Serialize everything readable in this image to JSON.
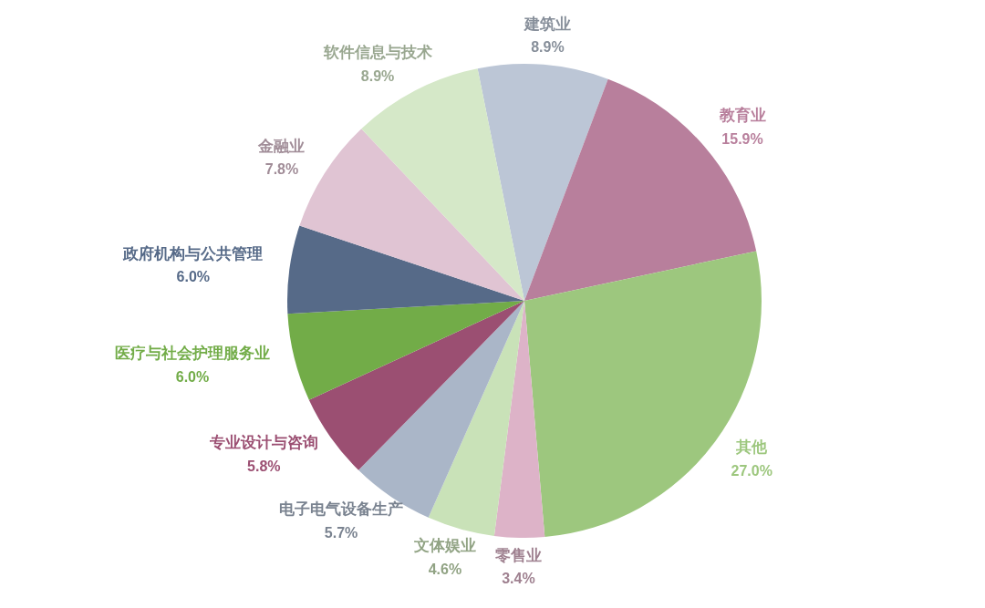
{
  "chart_data": {
    "type": "pie",
    "categories": [
      "建筑业",
      "教育业",
      "其他",
      "零售业",
      "文体娱业",
      "电子电气设备生产",
      "专业设计与咨询",
      "医疗与社会护理服务业",
      "政府机构与公共管理",
      "金融业",
      "软件信息与技术"
    ],
    "values": [
      8.9,
      15.9,
      27.0,
      3.4,
      4.6,
      5.7,
      5.8,
      6.0,
      6.0,
      7.8,
      8.9
    ],
    "value_labels": [
      "8.9%",
      "15.9%",
      "27.0%",
      "3.4%",
      "4.6%",
      "5.7%",
      "5.8%",
      "6.0%",
      "6.0%",
      "7.8%",
      "8.9%"
    ],
    "colors": [
      "#bcc6d6",
      "#b87f9c",
      "#9dc77e",
      "#ddb3c8",
      "#c9e2b8",
      "#aab6c8",
      "#9b4f72",
      "#72ac48",
      "#566a88",
      "#e0c4d3",
      "#d5e8c8"
    ],
    "legend": false
  }
}
